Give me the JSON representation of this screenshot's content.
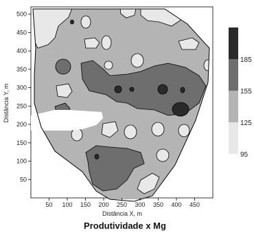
{
  "chart_data": {
    "type": "contour",
    "title": "Produtividade x Mg",
    "xlabel": "Distância X, m",
    "ylabel": "Distância Y, m",
    "xlim": [
      0,
      500
    ],
    "ylim": [
      0,
      520
    ],
    "xticks": [
      50,
      100,
      150,
      200,
      250,
      300,
      350,
      400,
      450
    ],
    "yticks": [
      50,
      100,
      150,
      200,
      250,
      300,
      350,
      400,
      450,
      500
    ],
    "legend": {
      "placement": "right",
      "levels": [
        "95",
        "125",
        "155",
        "185"
      ],
      "bands": [
        {
          "from": 95,
          "to": 125,
          "color": "#e8e8e8"
        },
        {
          "from": 125,
          "to": 155,
          "color": "#b4b4b4"
        },
        {
          "from": 155,
          "to": 185,
          "color": "#6e6e6e"
        },
        {
          "from": 185,
          "to": 215,
          "color": "#2a2a2a"
        }
      ]
    },
    "colors": {
      "level_95": "#e8e8e8",
      "level_125": "#b4b4b4",
      "level_155": "#6e6e6e",
      "level_185": "#2a2a2a",
      "boundary": "#000000"
    }
  }
}
